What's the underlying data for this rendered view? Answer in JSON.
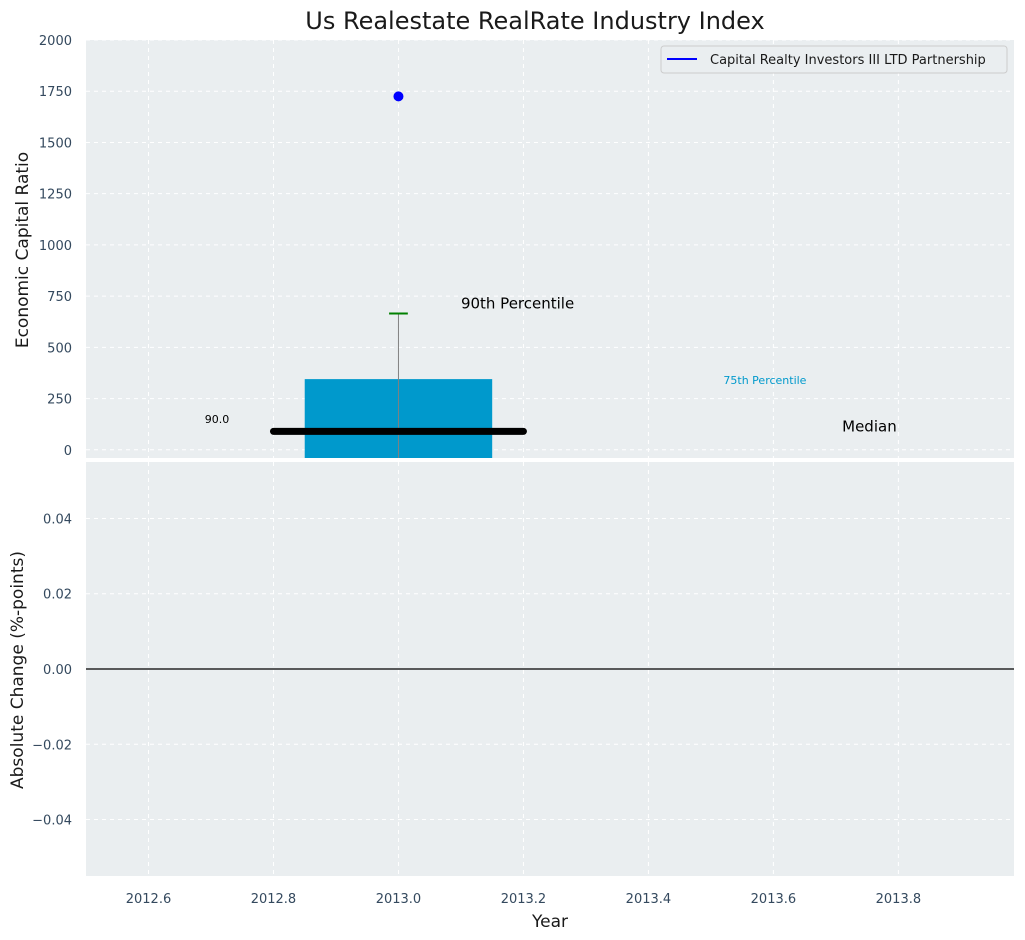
{
  "chart_data": {
    "type": "bar",
    "title": "Us Realestate RealRate Industry Index",
    "colors": {
      "background": "#ffffff",
      "panel": "#eaeef0",
      "grid": "#ffffff",
      "bar": "#0099cc",
      "company_point": "#0000ff",
      "legend_line": "#0000ff",
      "p90_cap": "#008000",
      "whisker": "#808080",
      "median": "#000000",
      "zero_line": "#000000",
      "p75_label": "#0099cc"
    },
    "top_panel": {
      "ylabel": "Economic Capital Ratio",
      "ylim": [
        -40,
        2000
      ],
      "yticks": [
        0,
        250,
        500,
        750,
        1000,
        1250,
        1500,
        1750,
        2000
      ],
      "ytick_labels": [
        "0",
        "250",
        "500",
        "750",
        "1000",
        "1250",
        "1500",
        "1750",
        "2000"
      ],
      "box": {
        "x": 2013.0,
        "width": 0.3,
        "bottom": -40,
        "top": 345
      },
      "percentile_90": {
        "x": 2013.0,
        "value": 665,
        "cap_half_width": 0.015
      },
      "median": {
        "x_start": 2012.8,
        "x_end": 2013.2,
        "value": 90
      },
      "company_point": {
        "x": 2013.0,
        "value": 1725
      },
      "annotations": [
        {
          "id": "p90",
          "text": "90th Percentile",
          "x": 2013.1,
          "y": 690
        },
        {
          "id": "p75",
          "text": "75th Percentile",
          "x": 2013.52,
          "y": 320
        },
        {
          "id": "median",
          "text": "Median",
          "x": 2013.71,
          "y": 90
        },
        {
          "id": "median_value",
          "text": "90.0",
          "x": 2012.69,
          "y": 130
        }
      ],
      "legend": {
        "label": "Capital Realty Investors III LTD Partnership",
        "position": "top-right"
      }
    },
    "bottom_panel": {
      "ylabel": "Absolute Change (%-points)",
      "ylim": [
        -0.055,
        0.055
      ],
      "yticks": [
        0.04,
        0.02,
        0.0,
        -0.02,
        -0.04
      ],
      "ytick_labels": [
        "0.04",
        "0.02",
        "0.00",
        "−0.02",
        "−0.04"
      ],
      "zero_line": 0.0,
      "xlabel": "Year",
      "xlim": [
        2012.5,
        2013.985
      ],
      "xticks": [
        2012.6,
        2012.8,
        2013.0,
        2013.2,
        2013.4,
        2013.6,
        2013.8
      ],
      "xtick_labels": [
        "2012.6",
        "2012.8",
        "2013.0",
        "2013.2",
        "2013.4",
        "2013.6",
        "2013.8"
      ]
    }
  }
}
